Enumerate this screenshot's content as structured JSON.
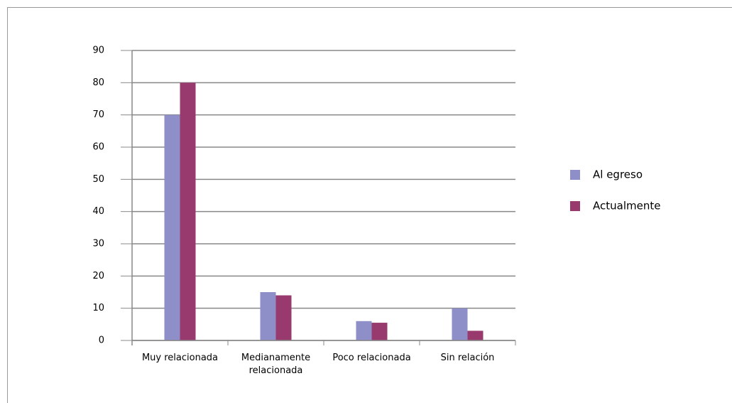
{
  "chart_data": {
    "type": "bar",
    "categories": [
      "Muy relacionada",
      "Medianamente relacionada",
      "Poco relacionada",
      "Sin relación"
    ],
    "series": [
      {
        "name": "Al egreso",
        "color": "#8e8ec8",
        "values": [
          70,
          15,
          6,
          10
        ]
      },
      {
        "name": "Actualmente",
        "color": "#993a6e",
        "values": [
          80,
          14,
          5.5,
          3
        ]
      }
    ],
    "ylim": [
      0,
      90
    ],
    "yticks": [
      0,
      10,
      20,
      30,
      40,
      50,
      60,
      70,
      80,
      90
    ],
    "grid": true,
    "legend": "right"
  }
}
